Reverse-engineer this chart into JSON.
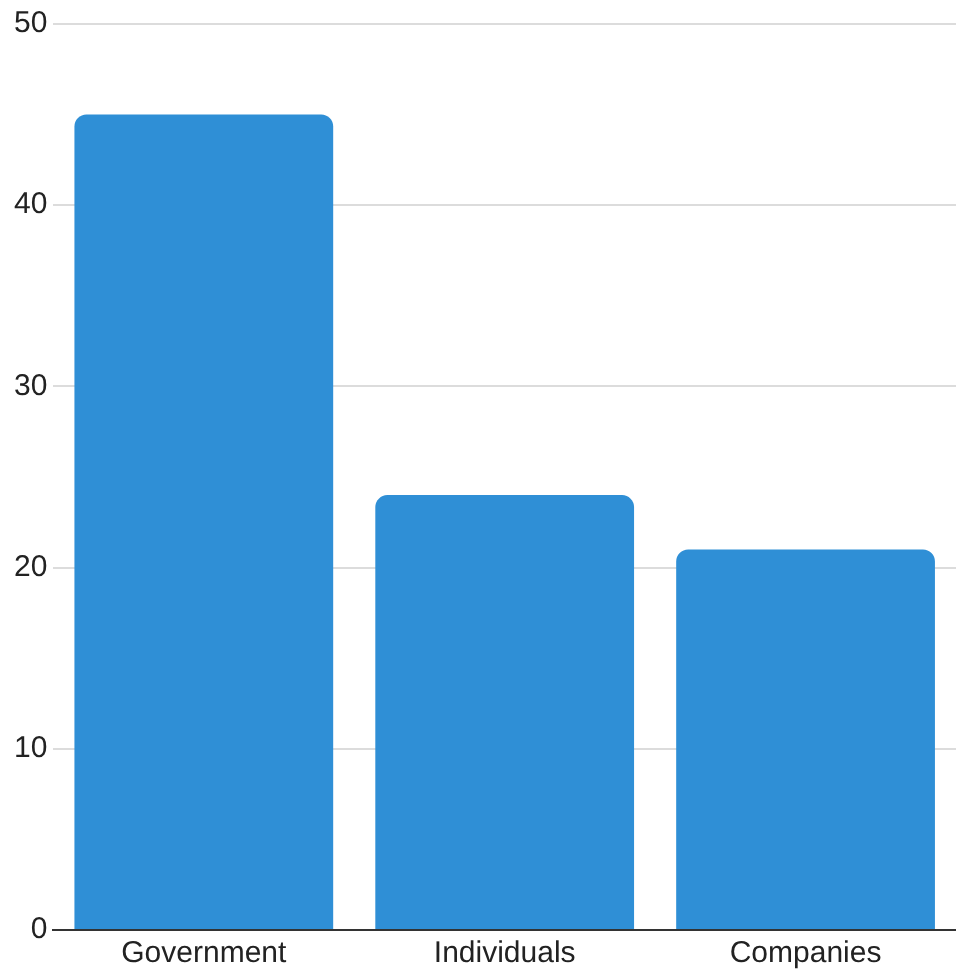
{
  "chart_data": {
    "type": "bar",
    "categories": [
      "Government",
      "Individuals",
      "Companies"
    ],
    "values": [
      45,
      24,
      21
    ],
    "color": "#2f8fd6",
    "ylim": [
      0,
      50
    ],
    "yticks": [
      0,
      10,
      20,
      30,
      40,
      50
    ],
    "grid": "y",
    "legend": false
  }
}
